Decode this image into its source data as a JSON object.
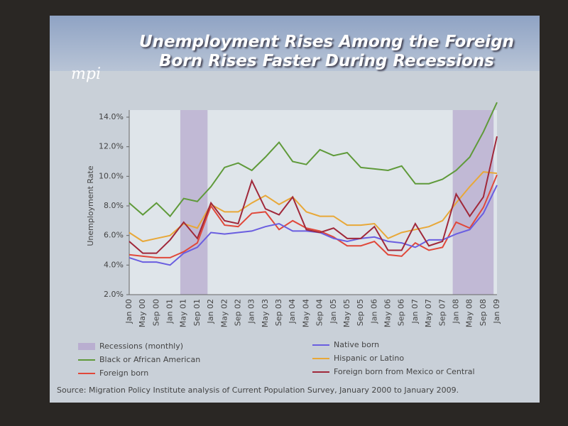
{
  "chart_data": {
    "type": "line",
    "logo": "mpi",
    "title": "Unemployment Rises Among the Foreign Born Rises Faster During Recessions",
    "y_label": "Unemployment Rate",
    "source": "Source: Migration Policy Institute analysis of Current Population Survey, January 2000 to January 2009.",
    "categories": [
      "Jan 00",
      "May 00",
      "Sep 00",
      "Jan 01",
      "May 01",
      "Sep 01",
      "Jan 02",
      "May 02",
      "Sep 02",
      "Jan 03",
      "May 03",
      "Sep 03",
      "Jan 04",
      "May 04",
      "Sep 04",
      "Jan 05",
      "May 05",
      "Sep 05",
      "Jan 06",
      "May 06",
      "Sep 06",
      "Jan 07",
      "May 07",
      "Sep 07",
      "Jan 08",
      "May 08",
      "Sep 08",
      "Jan 09"
    ],
    "ylim": [
      2,
      14
    ],
    "yticks": [
      {
        "value": 2,
        "label": "2.0%"
      },
      {
        "value": 4,
        "label": "4.0%"
      },
      {
        "value": 6,
        "label": "6.0%"
      },
      {
        "value": 8,
        "label": "8.0%"
      },
      {
        "value": 10,
        "label": "10.0%"
      },
      {
        "value": 12,
        "label": "12.0%"
      },
      {
        "value": 14,
        "label": "14.0%"
      }
    ],
    "recessions": {
      "name": "Recessions (monthly)",
      "color": "#b9aed0",
      "spans": [
        {
          "from": "May 01",
          "to": "Jan 02"
        },
        {
          "from": "Jan 08",
          "to": "Jan 09"
        }
      ]
    },
    "series": [
      {
        "name": "Black or African American",
        "color": "#5f9a3a",
        "values": [
          8.2,
          7.4,
          8.2,
          7.3,
          8.5,
          8.3,
          9.3,
          10.6,
          10.9,
          10.4,
          11.3,
          12.3,
          11.0,
          10.8,
          11.8,
          11.4,
          11.6,
          10.6,
          10.5,
          10.4,
          10.7,
          9.5,
          9.5,
          9.8,
          10.4,
          11.3,
          13.0,
          15.0
        ]
      },
      {
        "name": "Foreign born",
        "color": "#e0483a",
        "values": [
          4.7,
          4.6,
          4.5,
          4.5,
          4.9,
          5.5,
          8.0,
          6.7,
          6.6,
          7.5,
          7.6,
          6.4,
          7.0,
          6.5,
          6.3,
          5.9,
          5.3,
          5.3,
          5.6,
          4.7,
          4.6,
          5.5,
          5.0,
          5.2,
          6.9,
          6.5,
          7.9,
          10.1
        ]
      },
      {
        "name": "Native born",
        "color": "#6a5ee0",
        "values": [
          4.5,
          4.2,
          4.2,
          4.0,
          4.8,
          5.2,
          6.2,
          6.1,
          6.2,
          6.3,
          6.6,
          6.8,
          6.3,
          6.3,
          6.2,
          5.8,
          5.6,
          5.8,
          5.9,
          5.6,
          5.5,
          5.2,
          5.7,
          5.7,
          6.1,
          6.4,
          7.5,
          9.4
        ]
      },
      {
        "name": "Hispanic or Latino",
        "color": "#e8a838",
        "values": [
          6.2,
          5.6,
          5.8,
          6.0,
          6.8,
          6.5,
          8.1,
          7.6,
          7.6,
          8.2,
          8.7,
          8.1,
          8.6,
          7.6,
          7.3,
          7.3,
          6.7,
          6.7,
          6.8,
          5.8,
          6.2,
          6.4,
          6.6,
          7.0,
          8.2,
          9.3,
          10.3,
          10.2
        ]
      },
      {
        "name": "Foreign born from Mexico or Central",
        "color": "#a0283a",
        "values": [
          5.6,
          4.8,
          4.8,
          5.7,
          6.9,
          5.8,
          8.2,
          7.0,
          6.8,
          9.7,
          7.8,
          7.4,
          8.6,
          6.4,
          6.2,
          6.5,
          5.8,
          5.8,
          6.6,
          5.0,
          5.0,
          6.8,
          5.3,
          5.6,
          8.8,
          7.3,
          8.6,
          12.7
        ]
      }
    ]
  }
}
